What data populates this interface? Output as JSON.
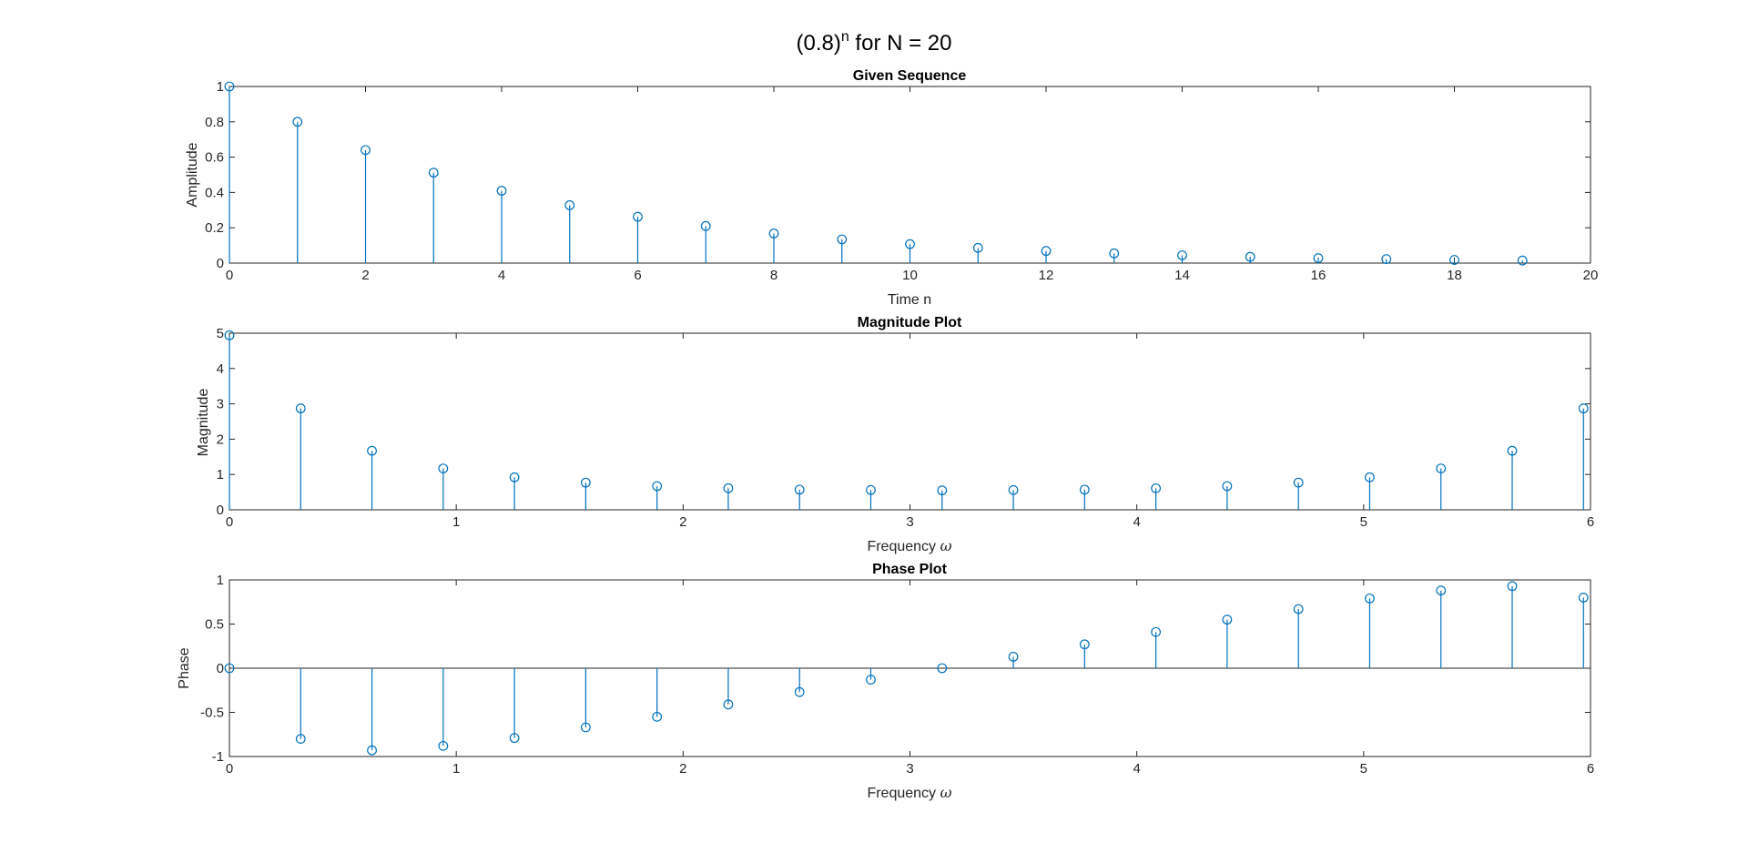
{
  "figure": {
    "title_main": "(0.8)",
    "title_sup": "n",
    "title_rest": " for N = 20"
  },
  "colors": {
    "stem": "#0072BD",
    "axes": "#262626"
  },
  "chart_data": [
    {
      "type": "stem",
      "title": "Given Sequence",
      "xlabel": "Time n",
      "ylabel": "Amplitude",
      "xlim": [
        0,
        20
      ],
      "ylim": [
        0,
        1
      ],
      "xticks": [
        0,
        2,
        4,
        6,
        8,
        10,
        12,
        14,
        16,
        18,
        20
      ],
      "yticks": [
        0,
        0.2,
        0.4,
        0.6,
        0.8,
        1
      ],
      "x": [
        0,
        1,
        2,
        3,
        4,
        5,
        6,
        7,
        8,
        9,
        10,
        11,
        12,
        13,
        14,
        15,
        16,
        17,
        18,
        19
      ],
      "y": [
        1,
        0.8,
        0.64,
        0.512,
        0.4096,
        0.3277,
        0.2621,
        0.2097,
        0.1678,
        0.1342,
        0.1074,
        0.0859,
        0.0687,
        0.055,
        0.044,
        0.0352,
        0.0281,
        0.0225,
        0.018,
        0.0144
      ]
    },
    {
      "type": "stem",
      "title": "Magnitude Plot",
      "xlabel_main": "Frequency ",
      "xlabel_symbol": "ω",
      "ylabel": "Magnitude",
      "xlim": [
        0,
        6
      ],
      "ylim": [
        0,
        5
      ],
      "xticks": [
        0,
        1,
        2,
        3,
        4,
        5,
        6
      ],
      "yticks": [
        0,
        1,
        2,
        3,
        4,
        5
      ],
      "x": [
        0,
        0.3142,
        0.6283,
        0.9425,
        1.2566,
        1.5708,
        1.885,
        2.1991,
        2.5133,
        2.8274,
        3.1416,
        3.4558,
        3.7699,
        4.0841,
        4.3982,
        4.7124,
        5.0265,
        5.3407,
        5.6549,
        5.969
      ],
      "y": [
        4.94,
        2.87,
        1.67,
        1.17,
        0.92,
        0.77,
        0.67,
        0.61,
        0.57,
        0.56,
        0.55,
        0.56,
        0.57,
        0.61,
        0.67,
        0.77,
        0.92,
        1.17,
        1.67,
        2.87
      ]
    },
    {
      "type": "stem",
      "title": "Phase Plot",
      "xlabel_main": "Frequency ",
      "xlabel_symbol": "ω",
      "ylabel": "Phase",
      "xlim": [
        0,
        6
      ],
      "ylim": [
        -1,
        1
      ],
      "xticks": [
        0,
        1,
        2,
        3,
        4,
        5,
        6
      ],
      "yticks": [
        -1,
        -0.5,
        0,
        0.5,
        1
      ],
      "x": [
        0,
        0.3142,
        0.6283,
        0.9425,
        1.2566,
        1.5708,
        1.885,
        2.1991,
        2.5133,
        2.8274,
        3.1416,
        3.4558,
        3.7699,
        4.0841,
        4.3982,
        4.7124,
        5.0265,
        5.3407,
        5.6549,
        5.969
      ],
      "y": [
        0,
        -0.8,
        -0.93,
        -0.88,
        -0.79,
        -0.67,
        -0.55,
        -0.41,
        -0.27,
        -0.13,
        0,
        0.13,
        0.27,
        0.41,
        0.55,
        0.67,
        0.79,
        0.88,
        0.93,
        0.8
      ]
    }
  ]
}
